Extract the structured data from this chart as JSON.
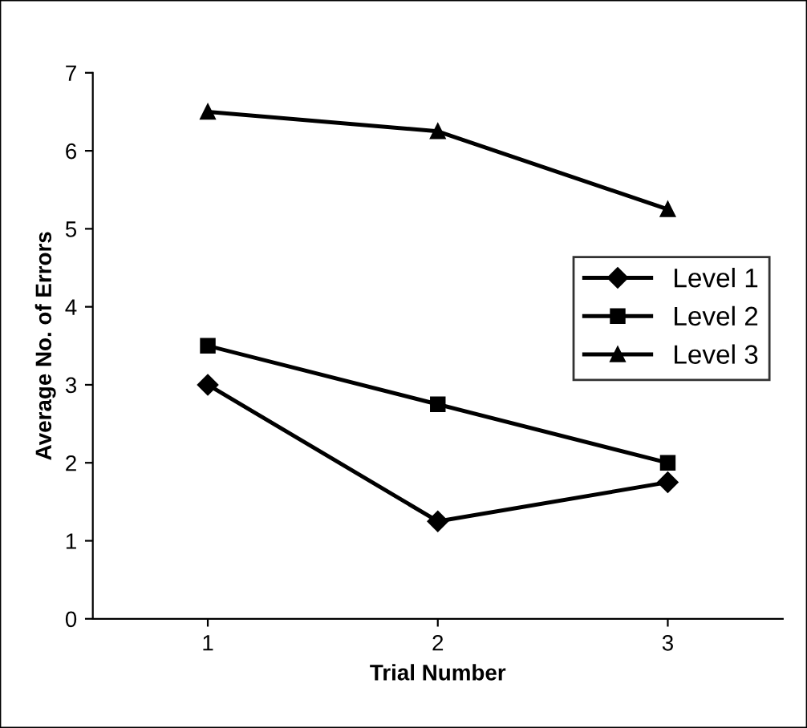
{
  "chart_data": {
    "type": "line",
    "xlabel": "Trial Number",
    "ylabel": "Average No. of Errors",
    "x": [
      1,
      2,
      3
    ],
    "xlim": [
      0.5,
      3.5
    ],
    "xticks": [
      1,
      2,
      3
    ],
    "ylim": [
      0,
      7
    ],
    "yticks": [
      0,
      1,
      2,
      3,
      4,
      5,
      6,
      7
    ],
    "grid": false,
    "legend": "right",
    "line_style": "solid",
    "series": [
      {
        "name": "Level 1",
        "color": "#000000",
        "marker": "diamond",
        "values": [
          3,
          1.25,
          1.75
        ]
      },
      {
        "name": "Level 2",
        "color": "#000000",
        "marker": "square",
        "values": [
          3.5,
          2.75,
          2
        ]
      },
      {
        "name": "Level 3",
        "color": "#000000",
        "marker": "triangle",
        "values": [
          6.5,
          6.25,
          5.25
        ]
      }
    ]
  }
}
